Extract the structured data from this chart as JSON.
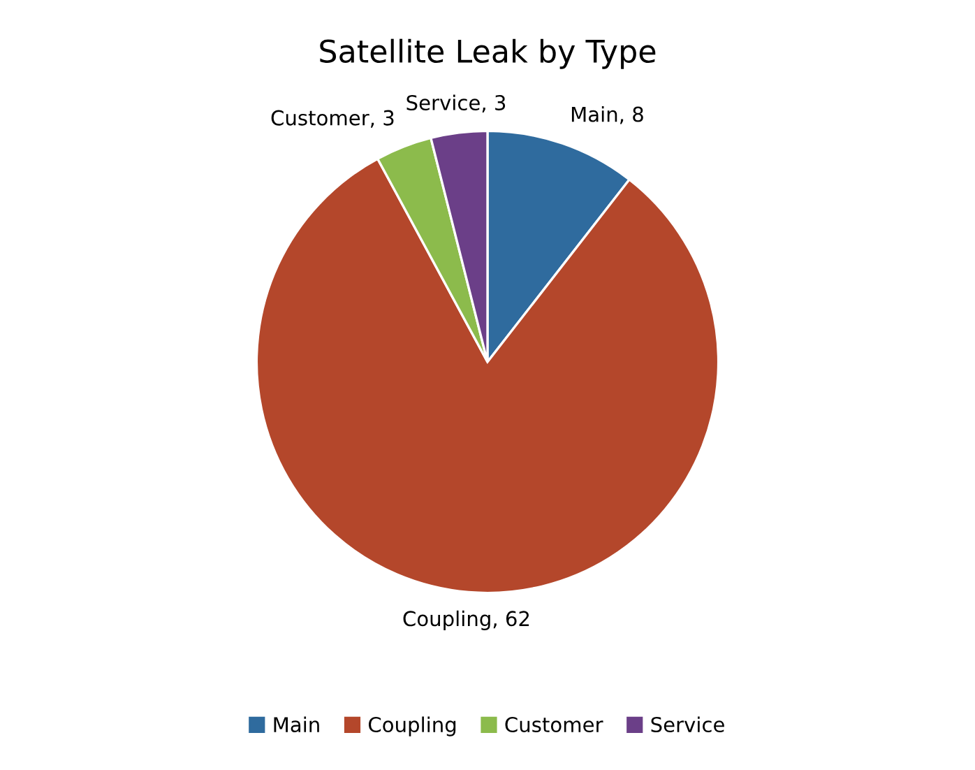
{
  "chart_data": {
    "type": "pie",
    "title": "Satellite Leak by Type",
    "categories": [
      "Main",
      "Coupling",
      "Customer",
      "Service"
    ],
    "values": [
      8,
      62,
      3,
      3
    ],
    "value_labels": [
      "Main, 8",
      "Coupling, 62",
      "Customer, 3",
      "Service, 3"
    ],
    "colors": [
      "#2f6b9e",
      "#b4472b",
      "#8cbb4c",
      "#6b3f88"
    ],
    "legend": "bottom"
  }
}
